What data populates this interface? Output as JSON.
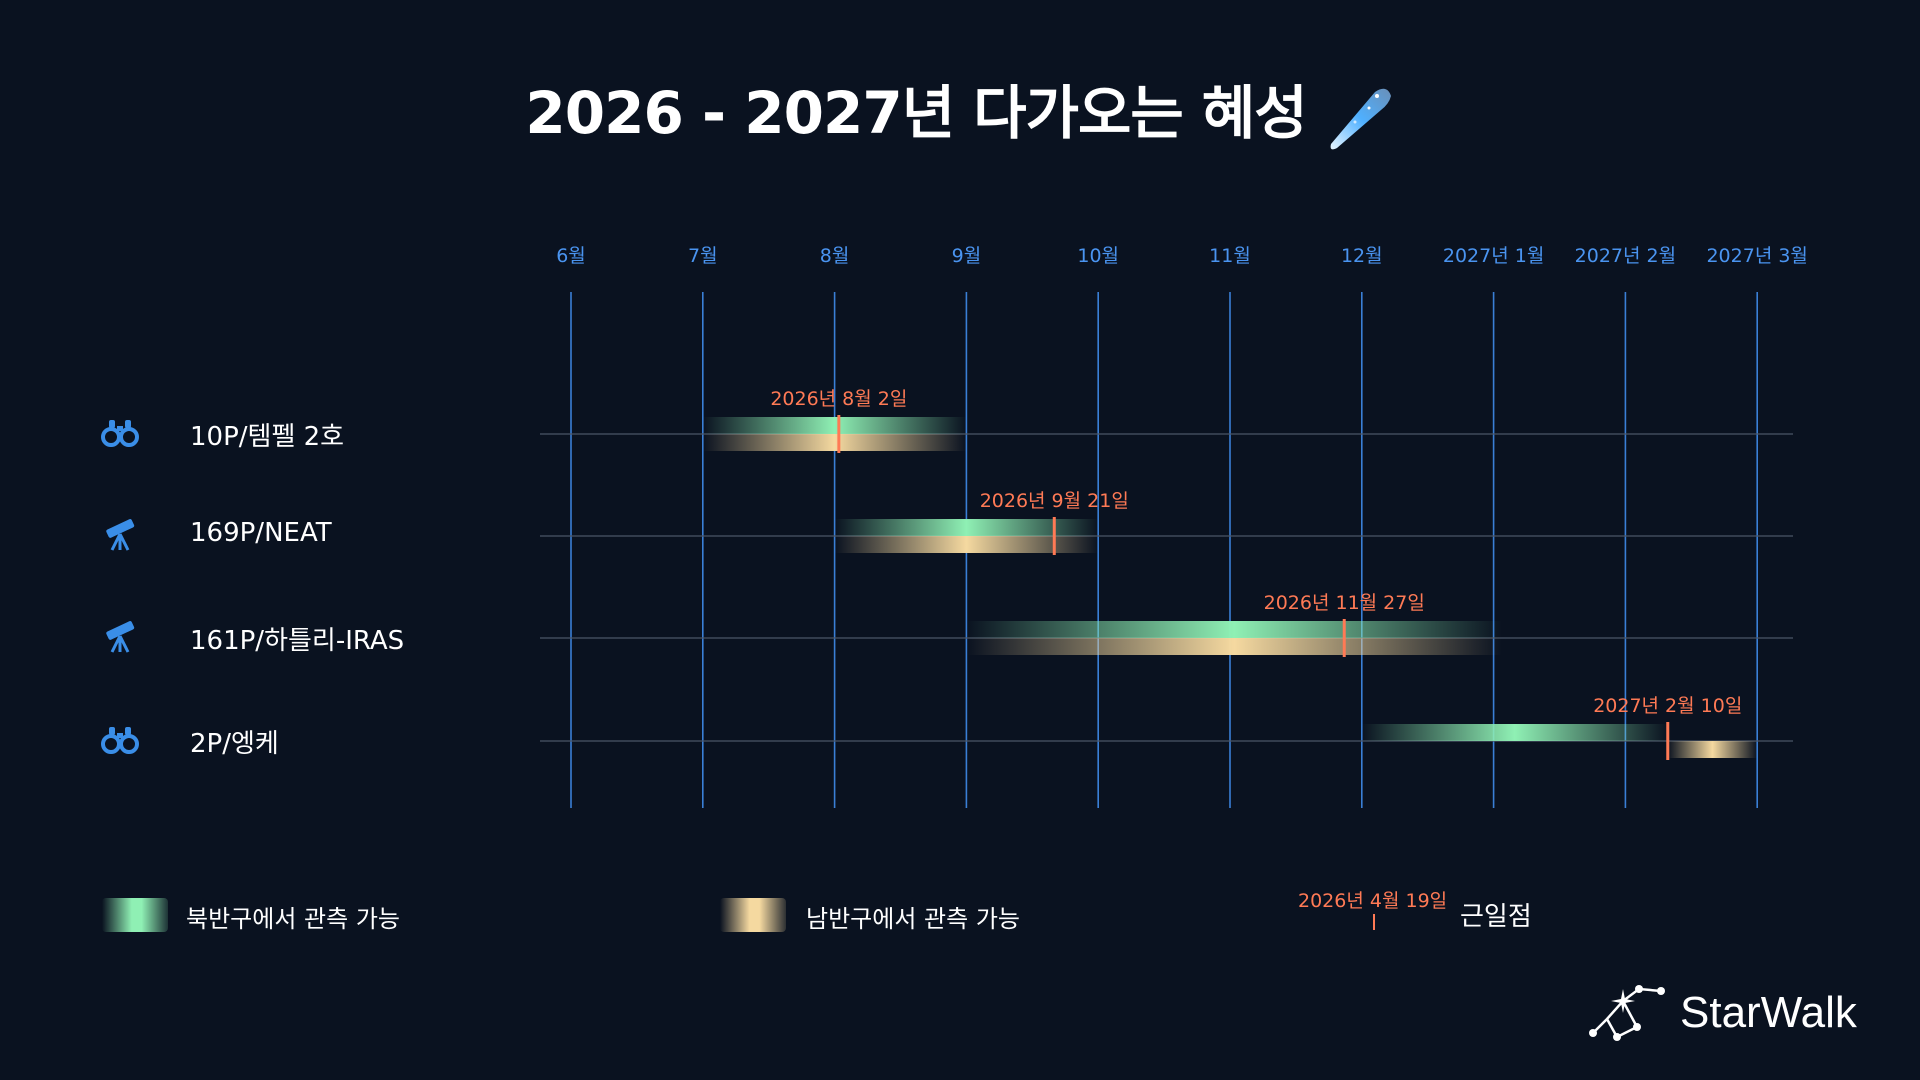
{
  "title": "2026 - 2027년 다가오는 혜성",
  "colors": {
    "background": "#0a1220",
    "month_line": "#3a7fd6",
    "month_label": "#4a94f0",
    "north": "#8ff0b4",
    "south": "#f5d9a0",
    "perihelion": "#ff7a55",
    "icon": "#3a8ee8"
  },
  "chart_data": {
    "type": "gantt",
    "title": "2026 - 2027년 다가오는 혜성",
    "x_axis": {
      "months": [
        "2026-06",
        "2026-07",
        "2026-08",
        "2026-09",
        "2026-10",
        "2026-11",
        "2026-12",
        "2027-01",
        "2027-02",
        "2027-03"
      ],
      "tick_labels": [
        "6월",
        "7월",
        "8월",
        "9월",
        "10월",
        "11월",
        "12월",
        "2027년 1월",
        "2027년 2월",
        "2027년 3월"
      ]
    },
    "series": [
      {
        "name": "10P/템펠 2호",
        "icon": "binoculars-icon",
        "north": [
          "2026-07-01",
          "2026-09-01"
        ],
        "south": [
          "2026-07-01",
          "2026-09-01"
        ],
        "perihelion": "2026-08-02",
        "perihelion_label": "2026년 8월 2일"
      },
      {
        "name": "169P/NEAT",
        "icon": "telescope-icon",
        "north": [
          "2026-08-01",
          "2026-10-01"
        ],
        "south": [
          "2026-08-01",
          "2026-10-01"
        ],
        "perihelion": "2026-09-21",
        "perihelion_label": "2026년 9월 21일"
      },
      {
        "name": "161P/하틀리-IRAS",
        "icon": "telescope-icon",
        "north": [
          "2026-09-01",
          "2027-01-03"
        ],
        "south": [
          "2026-09-01",
          "2027-01-03"
        ],
        "perihelion": "2026-11-27",
        "perihelion_label": "2026년 11월 27일"
      },
      {
        "name": "2P/엥케",
        "icon": "binoculars-icon",
        "north": [
          "2026-12-01",
          "2027-02-10"
        ],
        "south": [
          "2027-02-10",
          "2027-03-01"
        ],
        "perihelion": "2027-02-10",
        "perihelion_label": "2027년 2월 10일"
      }
    ]
  },
  "legend": {
    "north": "북반구에서 관측 가능",
    "south": "남반구에서 관측 가능",
    "perihelion_example_date": "2026년 4월 19일",
    "perihelion": "근일점"
  },
  "brand": "StarWalk"
}
